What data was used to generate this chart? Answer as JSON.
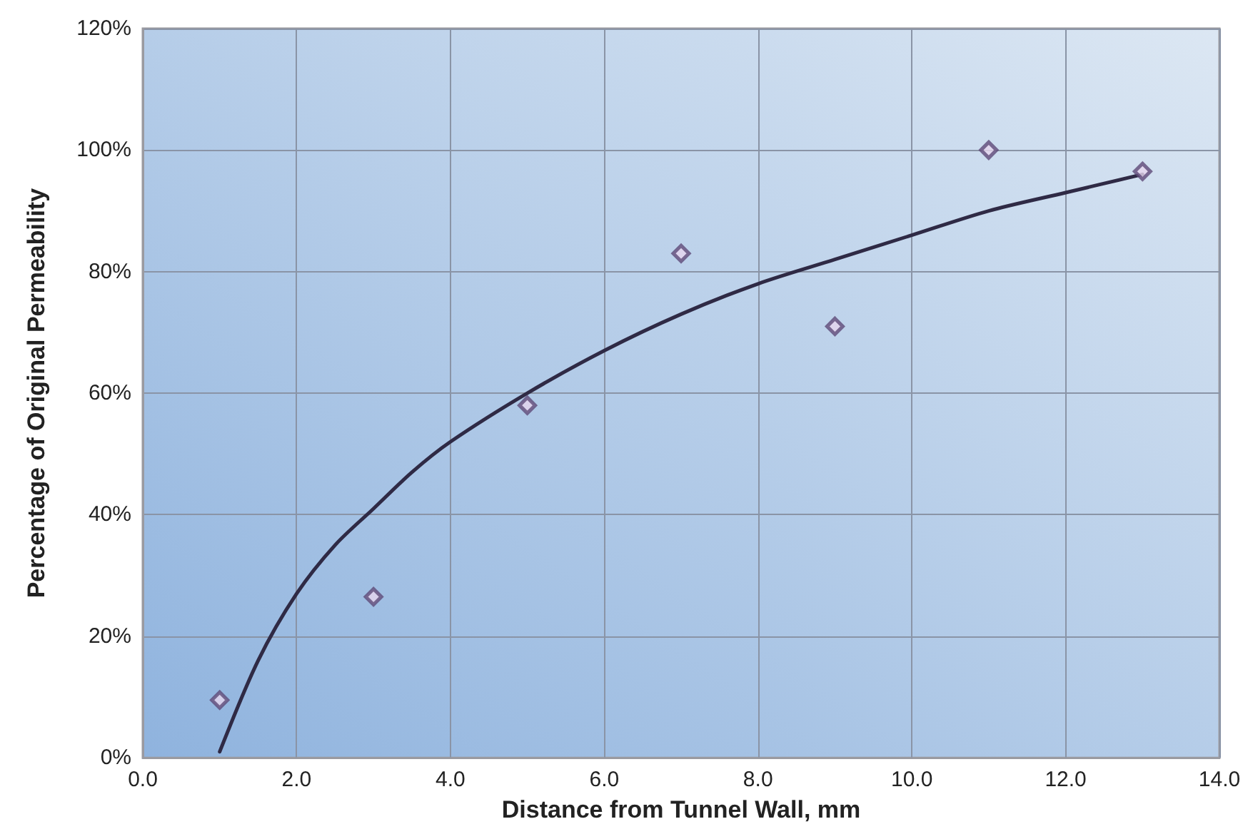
{
  "chart_data": {
    "type": "scatter",
    "xlabel": "Distance from Tunnel Wall, mm",
    "ylabel": "Percentage of Original Permeability",
    "series": [
      {
        "color": "#5e4a78",
        "marker": "diamond",
        "x": [
          1,
          3,
          5,
          7,
          9,
          11,
          13
        ],
        "values": [
          9.5,
          26.5,
          58,
          83,
          71,
          100,
          96.5
        ]
      },
      {
        "type": "line",
        "color": "#2f2a45",
        "marker": "none",
        "line_style": "solid",
        "x": [
          1,
          1.5,
          2,
          2.5,
          3,
          3.5,
          4,
          5,
          6,
          7,
          8,
          9,
          10,
          11,
          12,
          13
        ],
        "values": [
          1,
          16,
          27,
          35,
          41,
          47,
          52,
          60,
          67,
          73,
          78,
          82,
          86,
          90,
          93,
          96
        ]
      }
    ],
    "xlim": [
      0,
      14
    ],
    "xticks": [
      {
        "value": 0,
        "label": "0.0"
      },
      {
        "value": 2,
        "label": "2.0"
      },
      {
        "value": 4,
        "label": "4.0"
      },
      {
        "value": 6,
        "label": "6.0"
      },
      {
        "value": 8,
        "label": "8.0"
      },
      {
        "value": 10,
        "label": "10.0"
      },
      {
        "value": 12,
        "label": "12.0"
      },
      {
        "value": 14,
        "label": "14.0"
      }
    ],
    "ylim": [
      0,
      120
    ],
    "yticks": [
      {
        "value": 0,
        "label": "0%"
      },
      {
        "value": 20,
        "label": "20%"
      },
      {
        "value": 40,
        "label": "40%"
      },
      {
        "value": 60,
        "label": "60%"
      },
      {
        "value": 80,
        "label": "80%"
      },
      {
        "value": 100,
        "label": "100%"
      },
      {
        "value": 120,
        "label": "120%"
      }
    ],
    "grid": true
  }
}
